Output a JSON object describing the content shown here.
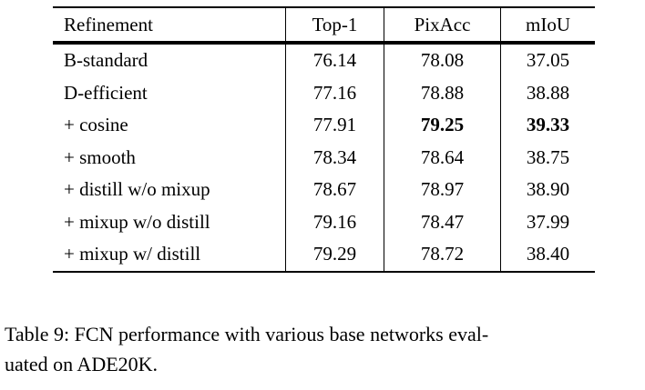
{
  "table": {
    "columns": [
      "Refinement",
      "Top-1",
      "PixAcc",
      "mIoU"
    ],
    "rows": [
      {
        "refinement": "B-standard",
        "top1": "76.14",
        "pixacc": "78.08",
        "miou": "37.05"
      },
      {
        "refinement": "D-efficient",
        "top1": "77.16",
        "pixacc": "78.88",
        "miou": "38.88"
      },
      {
        "refinement": "+ cosine",
        "top1": "77.91",
        "pixacc": "79.25",
        "miou": "39.33",
        "bold_cells": [
          "pixacc",
          "miou"
        ]
      },
      {
        "refinement": "+ smooth",
        "top1": "78.34",
        "pixacc": "78.64",
        "miou": "38.75"
      },
      {
        "refinement": "+ distill w/o mixup",
        "top1": "78.67",
        "pixacc": "78.97",
        "miou": "38.90"
      },
      {
        "refinement": "+ mixup w/o distill",
        "top1": "79.16",
        "pixacc": "78.47",
        "miou": "37.99"
      },
      {
        "refinement": "+ mixup w/ distill",
        "top1": "79.29",
        "pixacc": "78.72",
        "miou": "38.40"
      }
    ]
  },
  "caption": {
    "line1": "Table 9: FCN performance with various base networks eval-",
    "line2": "uated on ADE20K.",
    "full_text": "Table 9: FCN performance with various base networks evaluated on ADE20K."
  },
  "colors": {
    "text": "#000000",
    "background": "#ffffff",
    "rule": "#000000"
  }
}
